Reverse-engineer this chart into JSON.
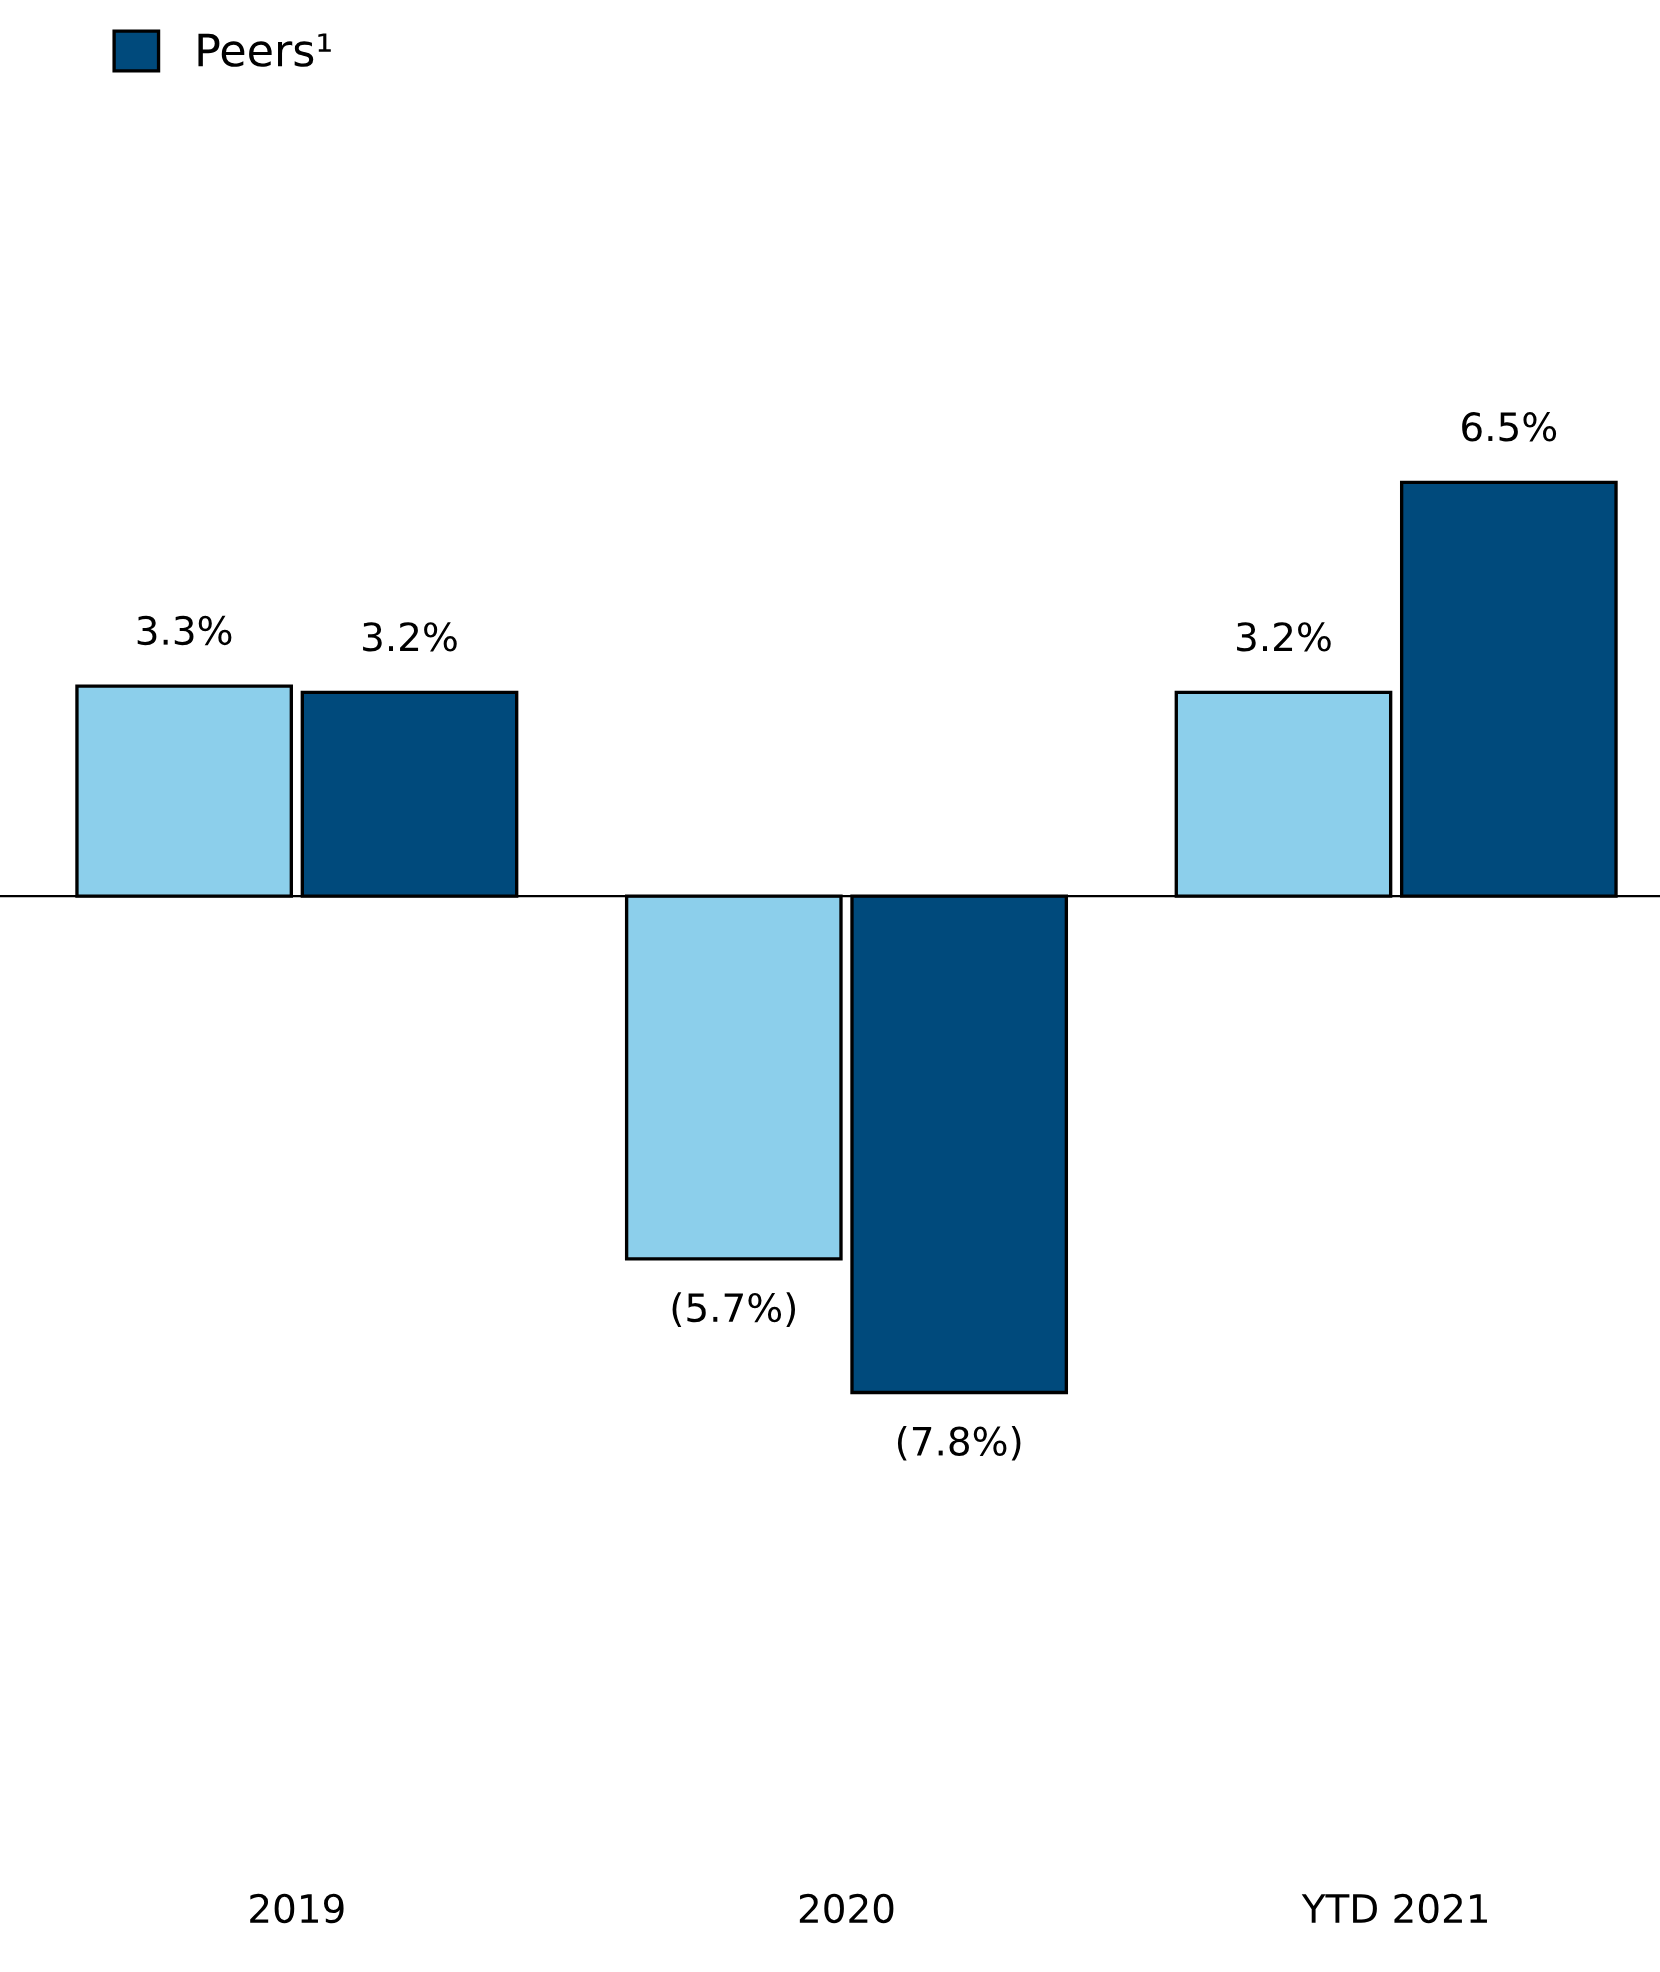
{
  "chart_data": {
    "type": "bar",
    "categories": [
      "2019",
      "2020",
      "YTD 2021"
    ],
    "series": [
      {
        "color": "#8ccfeb",
        "values": [
          3.3,
          -5.7,
          3.2
        ],
        "value_labels": [
          "3.3%",
          "(5.7%)",
          "3.2%"
        ]
      },
      {
        "name": "Peers¹",
        "color": "#004a7c",
        "values": [
          3.2,
          -7.8,
          6.5
        ],
        "value_labels": [
          "3.2%",
          "(7.8%)",
          "6.5%"
        ]
      }
    ],
    "legend": "top left",
    "grid": false
  }
}
